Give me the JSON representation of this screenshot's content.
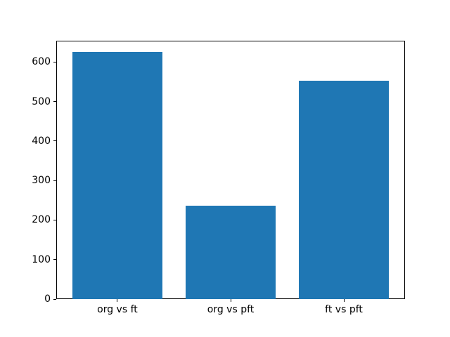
{
  "figure": {
    "background": "#ffffff",
    "title": ""
  },
  "chart_data": {
    "type": "bar",
    "categories": [
      "org vs ft",
      "org vs pft",
      "ft vs pft"
    ],
    "values": [
      625,
      236,
      553
    ],
    "title": "",
    "xlabel": "",
    "ylabel": "",
    "ylim": [
      0,
      654
    ],
    "yticks": [
      0,
      100,
      200,
      300,
      400,
      500,
      600
    ],
    "bar_color": "#1f77b4",
    "bar_width_fraction": 0.8,
    "grid": false,
    "legend": false,
    "axis_color": "#000000",
    "tick_label_color": "#000000"
  }
}
